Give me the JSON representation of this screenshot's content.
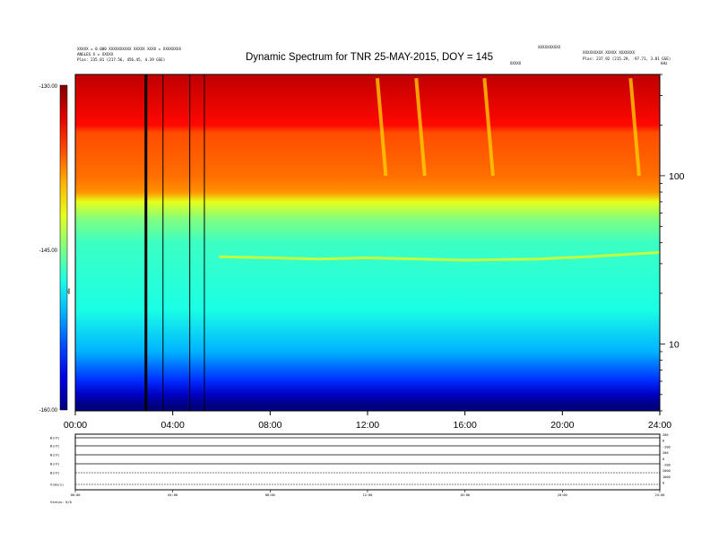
{
  "chart_data": {
    "type": "heatmap",
    "title": "Dynamic Spectrum for TNR 25-MAY-2015, DOY = 145",
    "header_left": [
      "XXXXX = 0.000 XXXXXXXXXX XXXXX XXXX = XXXXXXXX",
      "ANGLES X = XXXXX",
      "Plas:  235.81 (217.56, 456.45, 4.39 GSE)"
    ],
    "header_center": "XXXXX",
    "header_right": [
      "XXXXXXXXXX",
      "XXXXXXXXX XXXXX XXXXXXX",
      "Plas:  237.92 (215.29, -97.71, 3.81 GSE)"
    ],
    "x_label_top_right": "kHz",
    "x_ticks": [
      "00:00",
      "04:00",
      "08:00",
      "12:00",
      "16:00",
      "20:00",
      "24:00"
    ],
    "x_range_hours": [
      0,
      24
    ],
    "y_scale": "log",
    "y_ticks": [
      10,
      100
    ],
    "y_range_khz": [
      4,
      400
    ],
    "colorbar": {
      "ticks": [
        "-130.00",
        "-145.00",
        "-160.00"
      ],
      "range_db": [
        -160,
        -130
      ],
      "label": "dBW"
    },
    "stops": [
      {
        "f": 4.3,
        "db": -160
      },
      {
        "f": 5.0,
        "db": -158
      },
      {
        "f": 6.0,
        "db": -155
      },
      {
        "f": 9.0,
        "db": -151
      },
      {
        "f": 16.0,
        "db": -148
      },
      {
        "f": 40.0,
        "db": -147
      },
      {
        "f": 55.0,
        "db": -145
      },
      {
        "f": 70.0,
        "db": -142
      },
      {
        "f": 80.0,
        "db": -138
      },
      {
        "f": 100.0,
        "db": -137
      },
      {
        "f": 180.0,
        "db": -136
      },
      {
        "f": 200.0,
        "db": -134
      },
      {
        "f": 380.0,
        "db": -132
      }
    ],
    "plasma_line": [
      {
        "t": 5.9,
        "f": 33.0
      },
      {
        "t": 8.0,
        "f": 32.5
      },
      {
        "t": 10.0,
        "f": 32.0
      },
      {
        "t": 12.0,
        "f": 32.5
      },
      {
        "t": 16.0,
        "f": 31.5
      },
      {
        "t": 19.0,
        "f": 32.0
      },
      {
        "t": 21.0,
        "f": 33.0
      },
      {
        "t": 24.0,
        "f": 35.0
      }
    ],
    "bursts_hours": [
      12.4,
      14.0,
      16.8,
      22.8
    ],
    "data_gaps_hours": [
      2.9,
      3.6,
      4.7,
      5.3
    ],
    "panel_labels": [
      "B(nT)",
      "B(nT)",
      "B(nT)",
      "B(nT)",
      "B(nT)",
      "V(km/s)"
    ],
    "panel_right_ticks": [
      "200",
      "0",
      "-200",
      "200",
      "0",
      "-200",
      "2000",
      "1000",
      "0"
    ],
    "status_text": "Status: 0/0"
  }
}
